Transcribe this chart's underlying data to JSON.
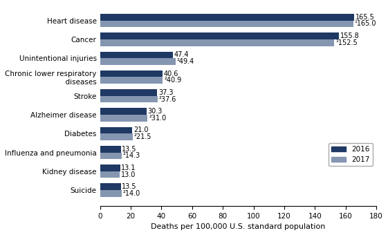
{
  "categories": [
    "Suicide",
    "Kidney disease",
    "Influenza and pneumonia",
    "Diabetes",
    "Alzheimer disease",
    "Stroke",
    "Chronic lower respiratory\n  diseases",
    "Unintentional injuries",
    "Cancer",
    "Heart disease"
  ],
  "values_2016": [
    13.5,
    13.1,
    13.5,
    21.0,
    30.3,
    37.3,
    40.6,
    47.4,
    155.8,
    165.5
  ],
  "values_2017": [
    14.0,
    13.0,
    14.3,
    21.5,
    31.0,
    37.6,
    40.9,
    49.4,
    152.5,
    165.0
  ],
  "labels_2016": [
    "13.5",
    "13.1",
    "13.5",
    "21.0",
    "30.3",
    "37.3",
    "40.6",
    "47.4",
    "155.8",
    "165.5"
  ],
  "labels_2017": [
    "²14.0",
    "13.0",
    "²14.3",
    "²21.5",
    "²31.0",
    "²37.6",
    "²40.9",
    "²49.4",
    "¹152.5",
    "¹165.0"
  ],
  "color_2016": "#1f3864",
  "color_2017": "#8496b0",
  "xlabel": "Deaths per 100,000 U.S. standard population",
  "xlim": [
    0,
    180
  ],
  "xticks": [
    0,
    20,
    40,
    60,
    80,
    100,
    120,
    140,
    160,
    180
  ],
  "legend_2016": "2016",
  "legend_2017": "2017",
  "bar_height": 0.35,
  "label_fontsize": 7.0,
  "tick_fontsize": 7.5,
  "xlabel_fontsize": 8.0
}
